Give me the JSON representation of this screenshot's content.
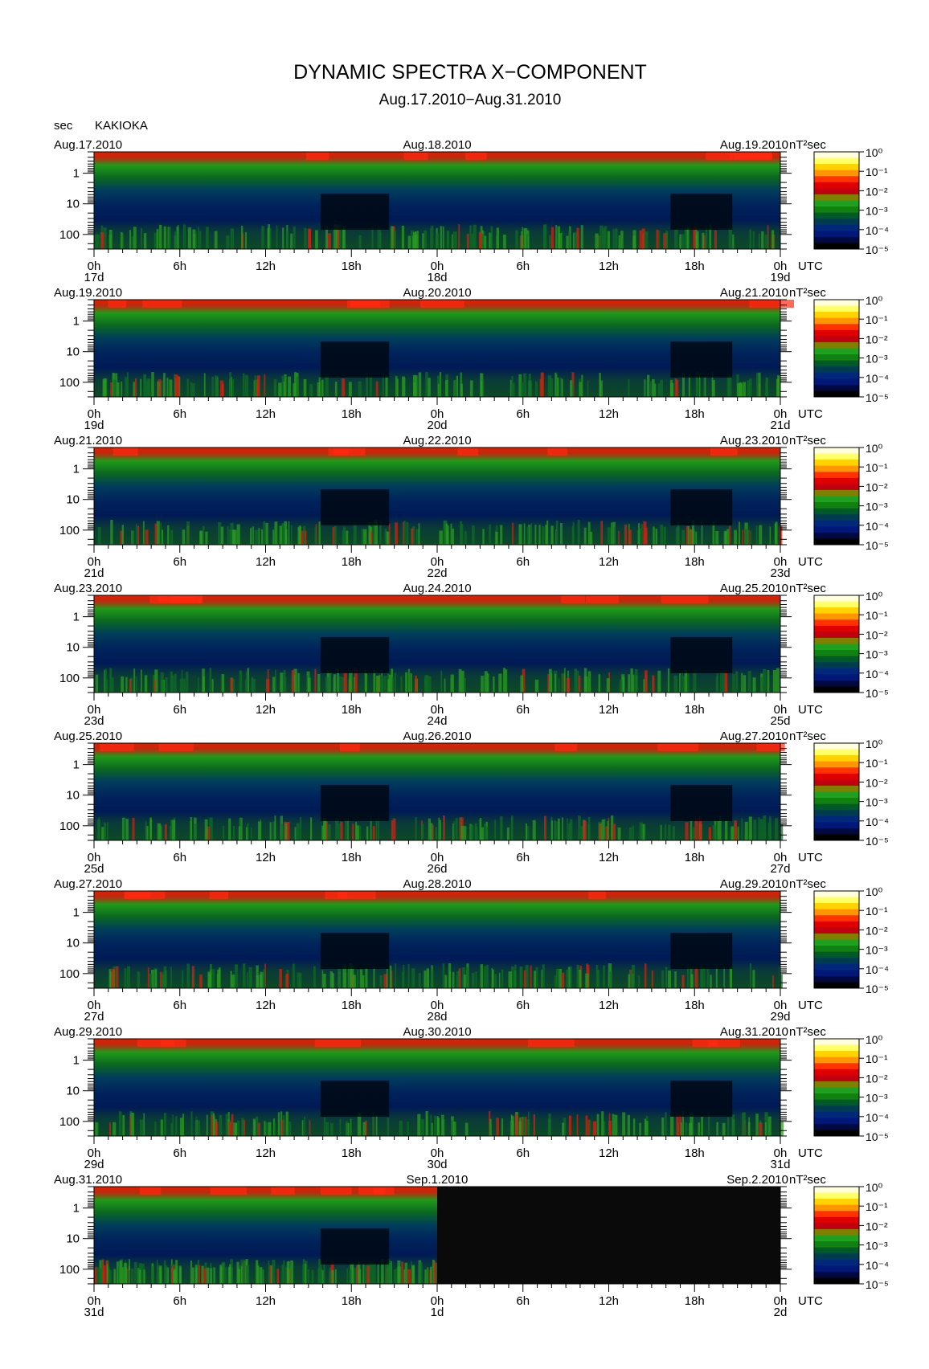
{
  "chart_data": {
    "type": "heatmap",
    "title": "DYNAMIC SPECTRA X−COMPONENT",
    "subtitle": "Aug.17.2010−Aug.31.2010",
    "station": "KAKIOKA",
    "y_unit_label": "sec",
    "x_unit_label": "UTC",
    "color_unit_label": "nT²sec",
    "y_axis": {
      "scale": "log",
      "tick_labels": [
        "1",
        "10",
        "100"
      ],
      "range_sec": [
        0.2,
        300
      ],
      "inverted": true
    },
    "x_tick_labels": [
      "0h",
      "6h",
      "12h",
      "18h",
      "0h",
      "6h",
      "12h",
      "18h",
      "0h"
    ],
    "colorbar": {
      "scale": "log",
      "tick_labels": [
        "10⁰",
        "10⁻¹",
        "10⁻²",
        "10⁻³",
        "10⁻⁴",
        "10⁻⁵"
      ],
      "colors": [
        "#ffffe0",
        "#ffff66",
        "#ffd200",
        "#ff9600",
        "#ff3200",
        "#e00000",
        "#c00010",
        "#808000",
        "#20a020",
        "#108010",
        "#005a28",
        "#003c50",
        "#00287a",
        "#00187a",
        "#000a40",
        "#000000"
      ]
    },
    "panels": [
      {
        "left_date": "Aug.17.2010",
        "mid_date": "Aug.18.2010",
        "right_date": "Aug.19.2010",
        "day_labels": [
          "17d",
          "18d",
          "19d"
        ]
      },
      {
        "left_date": "Aug.19.2010",
        "mid_date": "Aug.20.2010",
        "right_date": "Aug.21.2010",
        "day_labels": [
          "19d",
          "20d",
          "21d"
        ]
      },
      {
        "left_date": "Aug.21.2010",
        "mid_date": "Aug.22.2010",
        "right_date": "Aug.23.2010",
        "day_labels": [
          "21d",
          "22d",
          "23d"
        ]
      },
      {
        "left_date": "Aug.23.2010",
        "mid_date": "Aug.24.2010",
        "right_date": "Aug.25.2010",
        "day_labels": [
          "23d",
          "24d",
          "25d"
        ]
      },
      {
        "left_date": "Aug.25.2010",
        "mid_date": "Aug.26.2010",
        "right_date": "Aug.27.2010",
        "day_labels": [
          "25d",
          "26d",
          "27d"
        ]
      },
      {
        "left_date": "Aug.27.2010",
        "mid_date": "Aug.28.2010",
        "right_date": "Aug.29.2010",
        "day_labels": [
          "27d",
          "28d",
          "29d"
        ]
      },
      {
        "left_date": "Aug.29.2010",
        "mid_date": "Aug.30.2010",
        "right_date": "Aug.31.2010",
        "day_labels": [
          "29d",
          "30d",
          "31d"
        ]
      },
      {
        "left_date": "Aug.31.2010",
        "mid_date": "Sep.1.2010",
        "right_date": "Sep.2.2010",
        "day_labels": [
          "31d",
          "1d",
          "2d"
        ],
        "data_coverage_hours": 24
      }
    ]
  }
}
